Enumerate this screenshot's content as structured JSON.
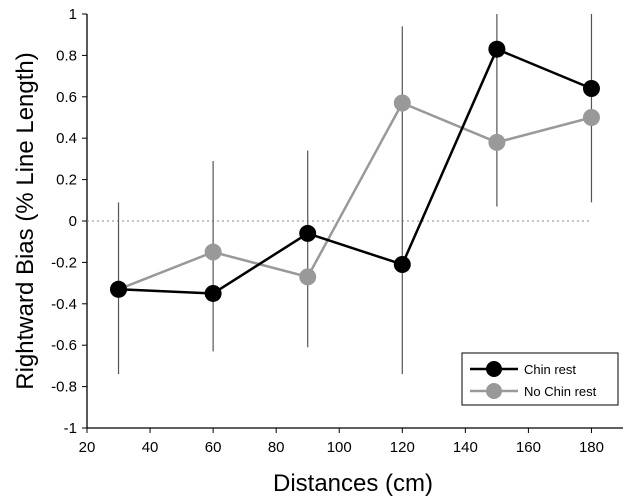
{
  "chart_data": {
    "type": "line",
    "title": "",
    "xlabel": "Distances (cm)",
    "ylabel": "Rightward Bias (% Line Length)",
    "xlim": [
      20,
      190
    ],
    "ylim": [
      -1,
      1
    ],
    "xticks": [
      20,
      40,
      60,
      80,
      100,
      120,
      140,
      160,
      180
    ],
    "yticks": [
      -1,
      -0.8,
      -0.6,
      -0.4,
      -0.2,
      0,
      0.2,
      0.4,
      0.6,
      0.8,
      1
    ],
    "grid": false,
    "reference_line": {
      "y": 0,
      "style": "dotted"
    },
    "legend": {
      "position": "bottom-right"
    },
    "x": [
      30,
      60,
      90,
      120,
      150,
      180
    ],
    "series": [
      {
        "name": "Chin rest",
        "color": "#000000",
        "values": [
          -0.33,
          -0.35,
          -0.06,
          -0.21,
          0.83,
          0.64
        ]
      },
      {
        "name": "No Chin rest",
        "color": "#999999",
        "values": [
          -0.33,
          -0.15,
          -0.27,
          0.57,
          0.38,
          0.5
        ]
      }
    ],
    "error_bars": [
      {
        "x": 30,
        "low": -0.74,
        "high": 0.09
      },
      {
        "x": 60,
        "low": -0.63,
        "high": 0.29
      },
      {
        "x": 90,
        "low": -0.61,
        "high": 0.34
      },
      {
        "x": 120,
        "low": -0.74,
        "high": 0.94
      },
      {
        "x": 150,
        "low": 0.07,
        "high": 1.0
      },
      {
        "x": 180,
        "low": 0.09,
        "high": 1.0
      }
    ]
  }
}
